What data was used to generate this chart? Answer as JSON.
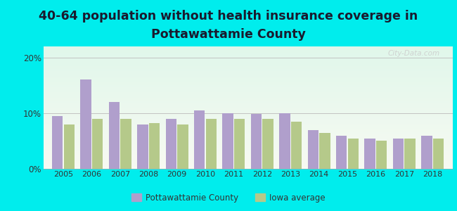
{
  "title_line1": "40-64 population without health insurance coverage in",
  "title_line2": "Pottawattamie County",
  "years": [
    2005,
    2006,
    2007,
    2008,
    2009,
    2010,
    2011,
    2012,
    2013,
    2014,
    2015,
    2016,
    2017,
    2018
  ],
  "pottawattamie": [
    9.5,
    16.0,
    12.0,
    8.0,
    9.0,
    10.5,
    10.0,
    9.8,
    10.0,
    7.0,
    6.0,
    5.5,
    5.5,
    6.0
  ],
  "iowa_avg": [
    8.0,
    9.0,
    9.0,
    8.2,
    8.0,
    9.0,
    9.0,
    9.0,
    8.5,
    6.5,
    5.5,
    5.0,
    5.5,
    5.5
  ],
  "bar_color_pott": "#b09fcc",
  "bar_color_iowa": "#b5c98a",
  "bg_outer": "#00eded",
  "ylim": [
    0,
    22
  ],
  "yticks": [
    0,
    10,
    20
  ],
  "ytick_labels": [
    "0%",
    "10%",
    "20%"
  ],
  "title_fontsize": 12.5,
  "legend_label_pott": "Pottawattamie County",
  "legend_label_iowa": "Iowa average"
}
